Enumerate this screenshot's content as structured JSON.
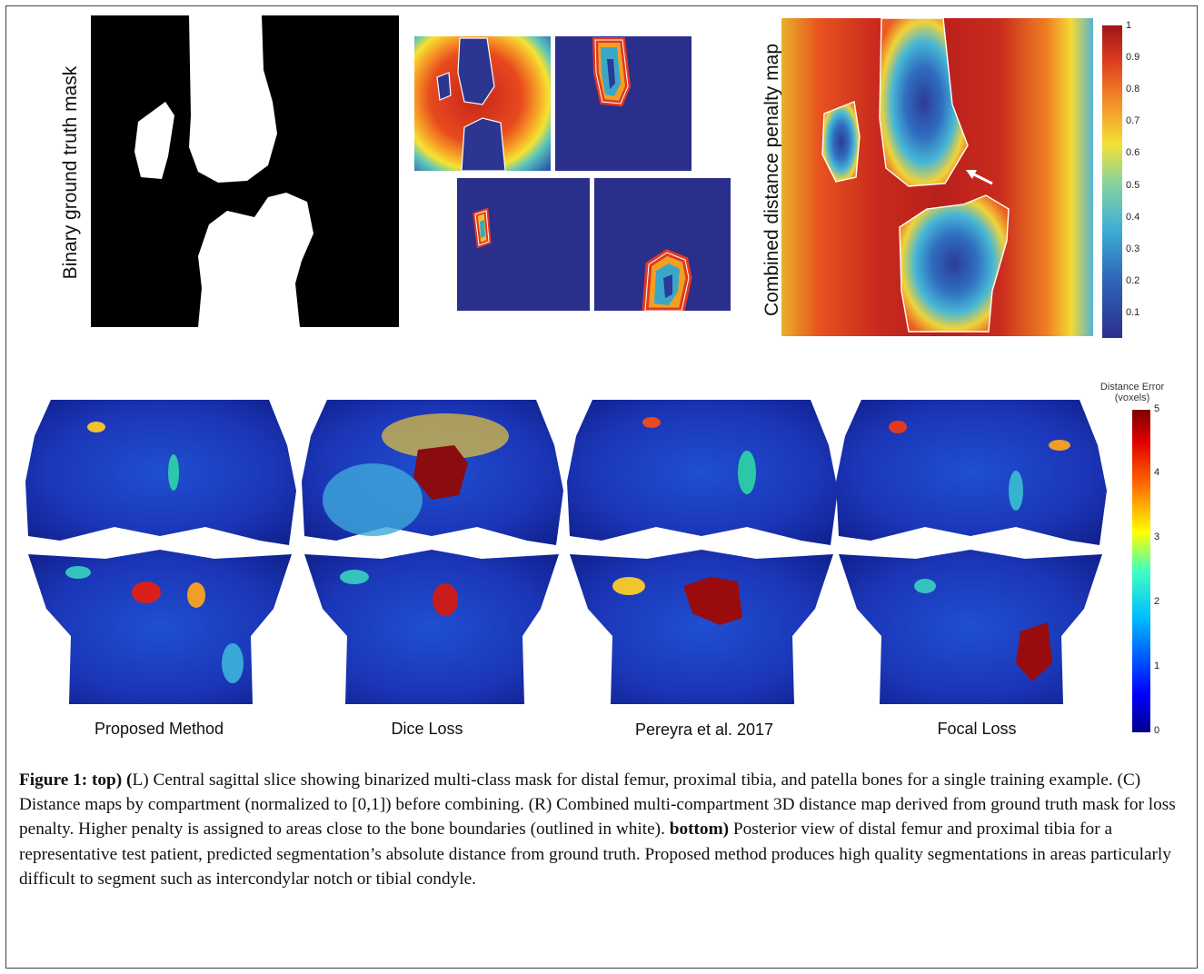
{
  "top": {
    "left_label": "Binary ground truth mask",
    "right_label": "Combined distance penalty map",
    "colorbar_ticks": [
      "1",
      "0.9",
      "0.8",
      "0.7",
      "0.6",
      "0.5",
      "0.4",
      "0.3",
      "0.2",
      "0.1"
    ]
  },
  "bottom": {
    "colorbar_title_1": "Distance Error",
    "colorbar_title_2": "(voxels)",
    "colorbar_ticks": [
      "5",
      "4",
      "3",
      "2",
      "1",
      "0"
    ],
    "methods": [
      "Proposed Method",
      "Dice Loss",
      "Pereyra et al. 2017",
      "Focal Loss"
    ]
  },
  "caption": {
    "figure_label": "Figure 1:",
    "top_label": "top) (",
    "seg1": "L) Central sagittal slice showing binarized multi-class mask for distal femur, proximal tibia, and patella bones for a single training example. (C) Distance maps by compartment (normalized to [0,1]) before combining.  (R) Combined multi-compartment 3D distance map derived from ground truth mask for loss penalty. Higher penalty is assigned to areas close to the bone boundaries (outlined in white). ",
    "bottom_label": "bottom)",
    "seg2": " Posterior view of distal femur and proximal tibia for a representative test patient, predicted segmentation’s absolute distance from ground truth. Proposed method produces high quality segmentations in areas particularly difficult to segment such as intercondylar notch or tibial condyle."
  },
  "colors": {
    "low": "#2b2f8c",
    "high": "#b3161c",
    "jet_low": "#00008b",
    "jet_high": "#800000"
  }
}
